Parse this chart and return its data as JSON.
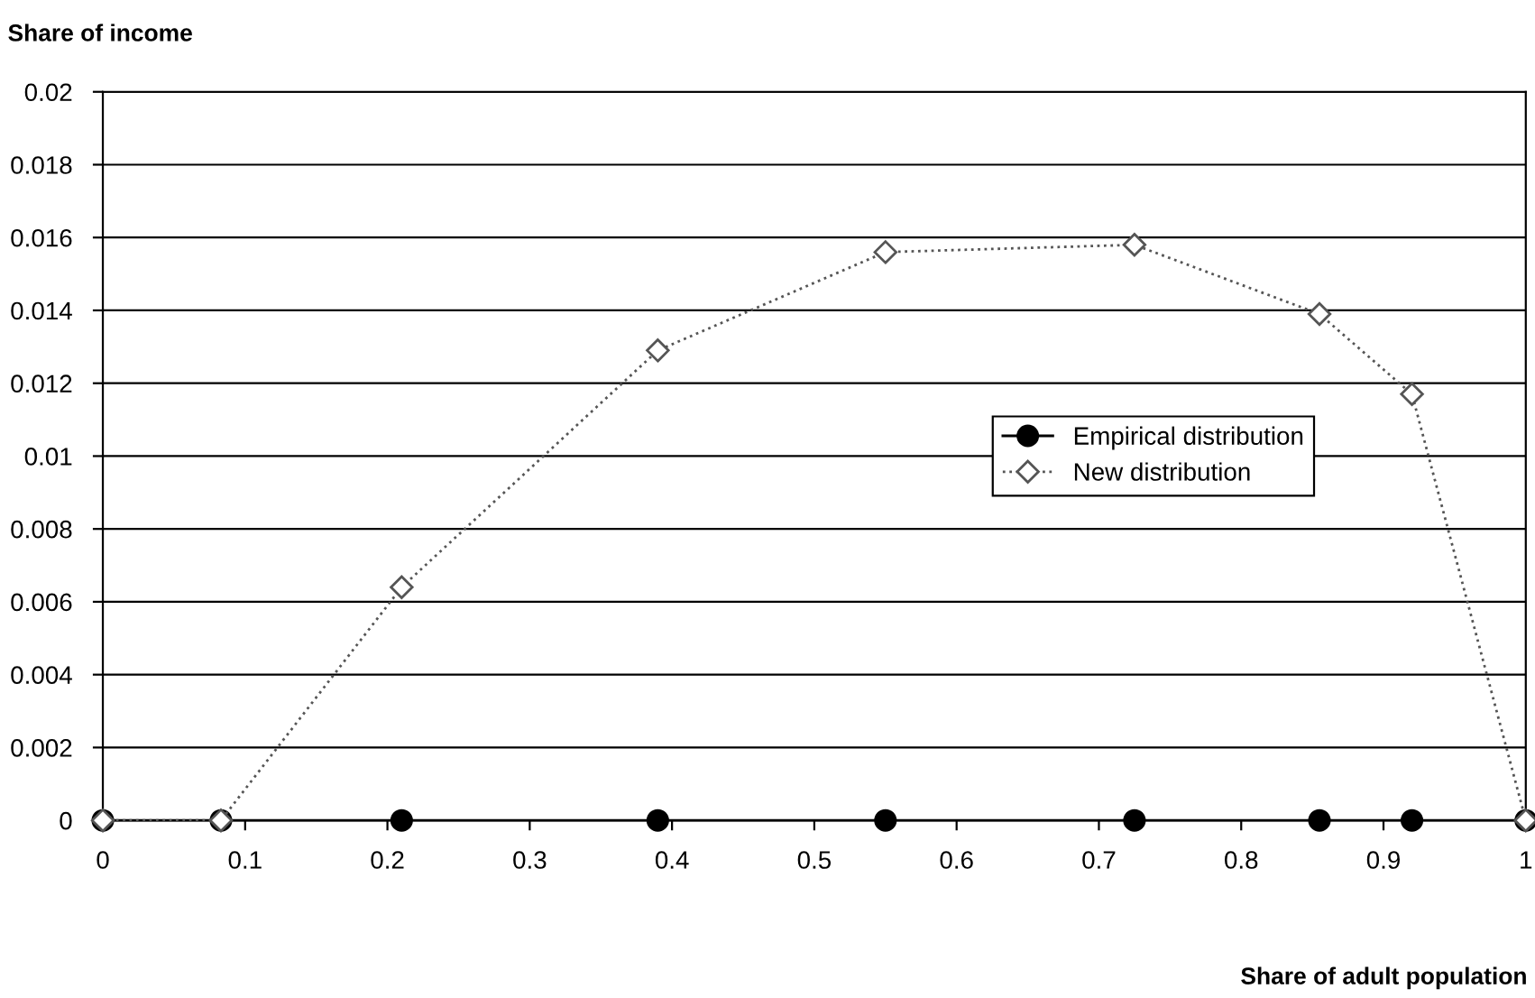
{
  "chart_data": {
    "type": "line",
    "xlabel": "Share of adult population",
    "ylabel": "Share of income",
    "xlim": [
      0,
      1
    ],
    "xticks": [
      0,
      0.1,
      0.2,
      0.3,
      0.4,
      0.5,
      0.6,
      0.7,
      0.8,
      0.9,
      1
    ],
    "ylim": [
      0,
      0.02
    ],
    "yticks": [
      0,
      0.002,
      0.004,
      0.006,
      0.008,
      0.01,
      0.012,
      0.014,
      0.016,
      0.018,
      0.02
    ],
    "grid": "y",
    "legend": "right",
    "series": [
      {
        "name": "Empirical distribution",
        "color": "#000000",
        "marker": "circle",
        "line_style": "solid",
        "x": [
          0,
          0.083,
          0.21,
          0.39,
          0.55,
          0.725,
          0.855,
          0.92,
          1
        ],
        "values": [
          0,
          0,
          0,
          0,
          0,
          0,
          0,
          0,
          0
        ]
      },
      {
        "name": "New distribution",
        "color": "#555555",
        "marker": "diamond",
        "line_style": "dotted",
        "x": [
          0,
          0.083,
          0.21,
          0.39,
          0.55,
          0.725,
          0.855,
          0.92,
          1
        ],
        "values": [
          0,
          0,
          0.0064,
          0.0129,
          0.0156,
          0.0158,
          0.0139,
          0.0117,
          0
        ]
      }
    ]
  }
}
